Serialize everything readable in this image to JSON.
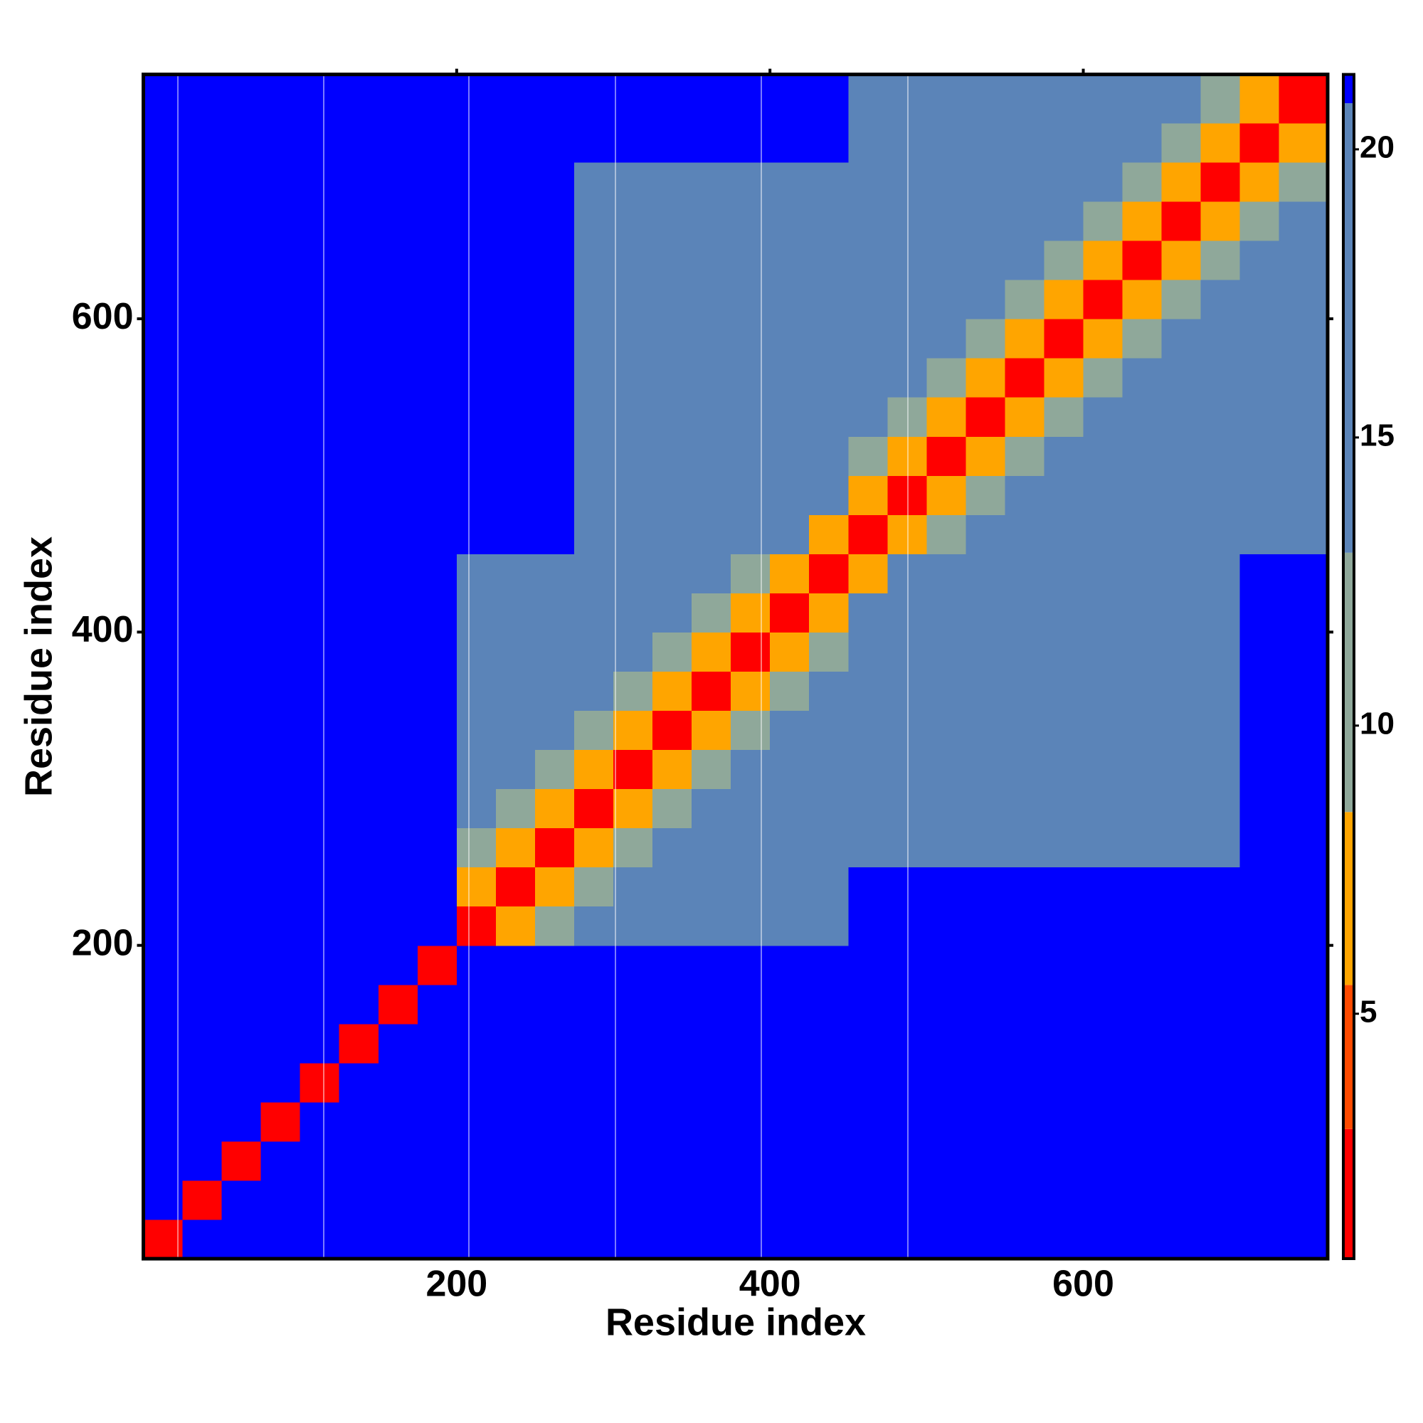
{
  "chart_data": {
    "type": "heatmap",
    "xlabel": "Residue index",
    "ylabel": "Residue index",
    "xlim": [
      0,
      756
    ],
    "ylim": [
      0,
      756
    ],
    "xticks": [
      200,
      400,
      600
    ],
    "yticks": [
      200,
      400,
      600
    ],
    "bins": [
      0,
      25,
      50,
      75,
      100,
      125,
      150,
      175,
      200,
      225,
      250,
      275,
      300,
      325,
      350,
      375,
      400,
      425,
      450,
      475,
      500,
      525,
      550,
      575,
      600,
      625,
      650,
      675,
      700,
      725,
      756
    ],
    "z": [
      [
        2,
        21,
        21,
        21,
        21,
        21,
        21,
        21,
        21,
        21,
        21,
        21,
        21,
        21,
        21,
        21,
        21,
        21,
        21,
        21,
        21,
        21,
        21,
        21,
        21,
        21,
        21,
        21,
        21,
        21
      ],
      [
        21,
        2,
        21,
        21,
        21,
        21,
        21,
        21,
        21,
        21,
        21,
        21,
        21,
        21,
        21,
        21,
        21,
        21,
        21,
        21,
        21,
        21,
        21,
        21,
        21,
        21,
        21,
        21,
        21,
        21
      ],
      [
        21,
        21,
        2,
        21,
        21,
        21,
        21,
        21,
        21,
        21,
        21,
        21,
        21,
        21,
        21,
        21,
        21,
        21,
        21,
        21,
        21,
        21,
        21,
        21,
        21,
        21,
        21,
        21,
        21,
        21
      ],
      [
        21,
        21,
        21,
        2,
        21,
        21,
        21,
        21,
        21,
        21,
        21,
        21,
        21,
        21,
        21,
        21,
        21,
        21,
        21,
        21,
        21,
        21,
        21,
        21,
        21,
        21,
        21,
        21,
        21,
        21
      ],
      [
        21,
        21,
        21,
        21,
        2,
        21,
        21,
        21,
        21,
        21,
        21,
        21,
        21,
        21,
        21,
        21,
        21,
        21,
        21,
        21,
        21,
        21,
        21,
        21,
        21,
        21,
        21,
        21,
        21,
        21
      ],
      [
        21,
        21,
        21,
        21,
        21,
        2,
        21,
        21,
        21,
        21,
        21,
        21,
        21,
        21,
        21,
        21,
        21,
        21,
        21,
        21,
        21,
        21,
        21,
        21,
        21,
        21,
        21,
        21,
        21,
        21
      ],
      [
        21,
        21,
        21,
        21,
        21,
        21,
        2,
        21,
        21,
        21,
        21,
        21,
        21,
        21,
        21,
        21,
        21,
        21,
        21,
        21,
        21,
        21,
        21,
        21,
        21,
        21,
        21,
        21,
        21,
        21
      ],
      [
        21,
        21,
        21,
        21,
        21,
        21,
        21,
        2,
        21,
        21,
        21,
        21,
        21,
        21,
        21,
        21,
        21,
        21,
        21,
        21,
        21,
        21,
        21,
        21,
        21,
        21,
        21,
        21,
        21,
        21
      ],
      [
        21,
        21,
        21,
        21,
        21,
        21,
        21,
        21,
        2,
        8,
        12,
        17,
        17,
        17,
        17,
        17,
        17,
        17,
        21,
        21,
        21,
        21,
        21,
        21,
        21,
        21,
        21,
        21,
        21,
        21
      ],
      [
        21,
        21,
        21,
        21,
        21,
        21,
        21,
        21,
        8,
        2,
        8,
        12,
        17,
        17,
        17,
        17,
        17,
        17,
        21,
        21,
        21,
        21,
        21,
        21,
        21,
        21,
        21,
        21,
        21,
        21
      ],
      [
        21,
        21,
        21,
        21,
        21,
        21,
        21,
        21,
        12,
        8,
        2,
        8,
        12,
        17,
        17,
        17,
        17,
        17,
        20,
        20,
        20,
        20,
        20,
        20,
        20,
        20,
        20,
        20,
        21,
        21
      ],
      [
        21,
        21,
        21,
        21,
        21,
        21,
        21,
        21,
        17,
        12,
        8,
        2,
        8,
        12,
        17,
        17,
        17,
        17,
        20,
        20,
        20,
        20,
        20,
        20,
        20,
        20,
        20,
        20,
        21,
        21
      ],
      [
        21,
        21,
        21,
        21,
        21,
        21,
        21,
        21,
        17,
        17,
        12,
        8,
        2,
        8,
        12,
        17,
        17,
        17,
        20,
        20,
        20,
        20,
        20,
        20,
        20,
        20,
        20,
        20,
        21,
        21
      ],
      [
        21,
        21,
        21,
        21,
        21,
        21,
        21,
        21,
        17,
        17,
        17,
        12,
        8,
        2,
        8,
        12,
        17,
        17,
        20,
        20,
        20,
        20,
        20,
        20,
        20,
        20,
        20,
        20,
        21,
        21
      ],
      [
        21,
        21,
        21,
        21,
        21,
        21,
        21,
        21,
        17,
        17,
        17,
        17,
        12,
        8,
        2,
        8,
        12,
        17,
        20,
        20,
        20,
        20,
        20,
        20,
        20,
        20,
        20,
        20,
        21,
        21
      ],
      [
        21,
        21,
        21,
        21,
        21,
        21,
        21,
        21,
        17,
        17,
        17,
        17,
        17,
        12,
        8,
        2,
        8,
        12,
        20,
        20,
        20,
        20,
        20,
        20,
        20,
        20,
        20,
        20,
        21,
        21
      ],
      [
        21,
        21,
        21,
        21,
        21,
        21,
        21,
        21,
        17,
        17,
        17,
        17,
        17,
        17,
        12,
        8,
        2,
        8,
        20,
        20,
        20,
        20,
        20,
        20,
        20,
        20,
        20,
        20,
        21,
        21
      ],
      [
        21,
        21,
        21,
        21,
        21,
        21,
        21,
        21,
        17,
        17,
        17,
        17,
        17,
        17,
        17,
        12,
        8,
        2,
        8,
        20,
        20,
        20,
        20,
        20,
        20,
        20,
        20,
        20,
        21,
        21
      ],
      [
        21,
        21,
        21,
        21,
        21,
        21,
        21,
        21,
        21,
        21,
        21,
        20,
        20,
        20,
        20,
        20,
        20,
        8,
        2,
        8,
        12,
        17,
        17,
        17,
        17,
        17,
        17,
        17,
        17,
        17
      ],
      [
        21,
        21,
        21,
        21,
        21,
        21,
        21,
        21,
        21,
        21,
        21,
        20,
        20,
        20,
        20,
        20,
        20,
        20,
        8,
        2,
        8,
        12,
        17,
        17,
        17,
        17,
        17,
        17,
        17,
        17
      ],
      [
        21,
        21,
        21,
        21,
        21,
        21,
        21,
        21,
        21,
        21,
        21,
        20,
        20,
        20,
        20,
        20,
        20,
        20,
        12,
        8,
        2,
        8,
        12,
        17,
        17,
        17,
        17,
        17,
        17,
        17
      ],
      [
        21,
        21,
        21,
        21,
        21,
        21,
        21,
        21,
        21,
        21,
        21,
        20,
        20,
        20,
        20,
        20,
        20,
        20,
        17,
        12,
        8,
        2,
        8,
        12,
        17,
        17,
        17,
        17,
        17,
        17
      ],
      [
        21,
        21,
        21,
        21,
        21,
        21,
        21,
        21,
        21,
        21,
        21,
        20,
        20,
        20,
        20,
        20,
        20,
        20,
        17,
        17,
        12,
        8,
        2,
        8,
        12,
        17,
        17,
        17,
        17,
        17
      ],
      [
        21,
        21,
        21,
        21,
        21,
        21,
        21,
        21,
        21,
        21,
        21,
        20,
        20,
        20,
        20,
        20,
        20,
        20,
        17,
        17,
        17,
        12,
        8,
        2,
        8,
        12,
        17,
        17,
        17,
        17
      ],
      [
        21,
        21,
        21,
        21,
        21,
        21,
        21,
        21,
        21,
        21,
        21,
        20,
        20,
        20,
        20,
        20,
        20,
        20,
        17,
        17,
        17,
        17,
        12,
        8,
        2,
        8,
        12,
        17,
        17,
        17
      ],
      [
        21,
        21,
        21,
        21,
        21,
        21,
        21,
        21,
        21,
        21,
        21,
        20,
        20,
        20,
        20,
        20,
        20,
        20,
        17,
        17,
        17,
        17,
        17,
        12,
        8,
        2,
        8,
        12,
        17,
        17
      ],
      [
        21,
        21,
        21,
        21,
        21,
        21,
        21,
        21,
        21,
        21,
        21,
        20,
        20,
        20,
        20,
        20,
        20,
        20,
        17,
        17,
        17,
        17,
        17,
        17,
        12,
        8,
        2,
        8,
        12,
        17
      ],
      [
        21,
        21,
        21,
        21,
        21,
        21,
        21,
        21,
        21,
        21,
        21,
        20,
        20,
        20,
        20,
        20,
        20,
        20,
        17,
        17,
        17,
        17,
        17,
        17,
        17,
        12,
        8,
        2,
        8,
        12
      ],
      [
        21,
        21,
        21,
        21,
        21,
        21,
        21,
        21,
        21,
        21,
        21,
        21,
        21,
        21,
        21,
        21,
        21,
        21,
        17,
        17,
        17,
        17,
        17,
        17,
        17,
        17,
        12,
        8,
        2,
        8
      ],
      [
        21,
        21,
        21,
        21,
        21,
        21,
        21,
        21,
        21,
        21,
        21,
        21,
        21,
        21,
        21,
        21,
        21,
        21,
        17,
        17,
        17,
        17,
        17,
        17,
        17,
        17,
        17,
        12,
        8,
        2
      ]
    ],
    "zlim": [
      0.75,
      21.3
    ],
    "zticks": [
      5,
      10,
      15,
      20
    ],
    "colorscale": [
      {
        "max": 3,
        "color": "#ff0000"
      },
      {
        "max": 5.5,
        "color": "#ff4a00"
      },
      {
        "max": 8.5,
        "color": "#ffa500"
      },
      {
        "max": 13,
        "color": "#8fa89a"
      },
      {
        "max": 20.8,
        "color": "#5b84b8"
      },
      {
        "max": 21.3,
        "color": "#0000ff"
      }
    ]
  }
}
